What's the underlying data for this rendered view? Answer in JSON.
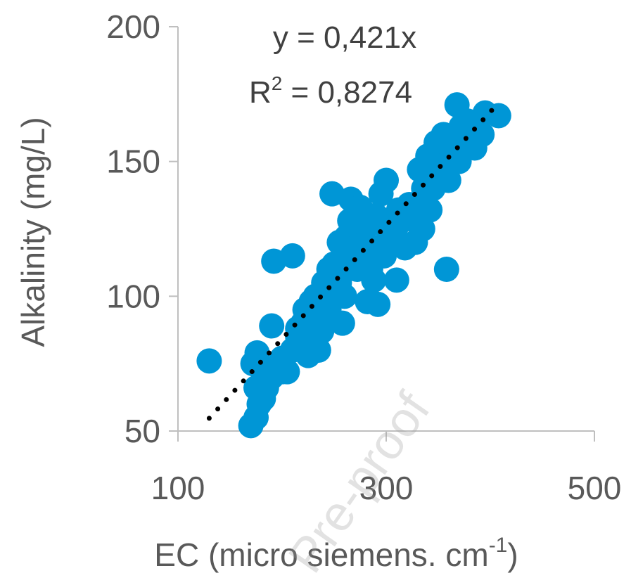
{
  "chart_data": {
    "type": "scatter",
    "xlabel": "EC (micro siemens. cm",
    "xlabel_sup": "-1",
    "xlabel_tail": ")",
    "ylabel": "Alkalinity (mg/L)",
    "xlim": [
      100,
      500
    ],
    "ylim": [
      50,
      200
    ],
    "x_ticks": [
      "100",
      "300",
      "500"
    ],
    "y_ticks": [
      "200",
      "150",
      "100",
      "50"
    ],
    "grid": false,
    "marker_color": "#0096D6",
    "trendline_color": "#000000",
    "equation": "y = 0,421x",
    "r2_prefix": "R",
    "r2_sup": "2",
    "r2_value": " = 0,8274",
    "watermark": "Pre-proof",
    "trendline": {
      "slope": 0.421,
      "x_start": 130,
      "x_end": 405
    },
    "points": [
      [
        130,
        76
      ],
      [
        170,
        52
      ],
      [
        175,
        55
      ],
      [
        178,
        60
      ],
      [
        182,
        62
      ],
      [
        175,
        66
      ],
      [
        185,
        66
      ],
      [
        172,
        75
      ],
      [
        176,
        79
      ],
      [
        190,
        70
      ],
      [
        195,
        74
      ],
      [
        200,
        77
      ],
      [
        205,
        72
      ],
      [
        210,
        80
      ],
      [
        190,
        89
      ],
      [
        192,
        113
      ],
      [
        210,
        115
      ],
      [
        215,
        85
      ],
      [
        220,
        90
      ],
      [
        222,
        95
      ],
      [
        228,
        98
      ],
      [
        225,
        82
      ],
      [
        232,
        100
      ],
      [
        235,
        95
      ],
      [
        240,
        105
      ],
      [
        238,
        87
      ],
      [
        245,
        110
      ],
      [
        248,
        138
      ],
      [
        250,
        112
      ],
      [
        255,
        120
      ],
      [
        258,
        90
      ],
      [
        260,
        100
      ],
      [
        262,
        122
      ],
      [
        265,
        128
      ],
      [
        266,
        136
      ],
      [
        268,
        115
      ],
      [
        270,
        130
      ],
      [
        272,
        110
      ],
      [
        275,
        133
      ],
      [
        278,
        125
      ],
      [
        280,
        120
      ],
      [
        282,
        98
      ],
      [
        285,
        127
      ],
      [
        288,
        106
      ],
      [
        290,
        130
      ],
      [
        292,
        97
      ],
      [
        295,
        138
      ],
      [
        298,
        115
      ],
      [
        300,
        143
      ],
      [
        305,
        125
      ],
      [
        310,
        106
      ],
      [
        312,
        132
      ],
      [
        318,
        118
      ],
      [
        322,
        134
      ],
      [
        328,
        128
      ],
      [
        332,
        147
      ],
      [
        336,
        140
      ],
      [
        340,
        152
      ],
      [
        345,
        145
      ],
      [
        348,
        157
      ],
      [
        352,
        148
      ],
      [
        355,
        160
      ],
      [
        358,
        110
      ],
      [
        360,
        150
      ],
      [
        363,
        158
      ],
      [
        368,
        171
      ],
      [
        372,
        163
      ],
      [
        378,
        165
      ],
      [
        385,
        155
      ],
      [
        395,
        168
      ],
      [
        408,
        167
      ],
      [
        392,
        160
      ],
      [
        360,
        143
      ],
      [
        345,
        140
      ],
      [
        335,
        125
      ],
      [
        318,
        118
      ],
      [
        300,
        120
      ],
      [
        285,
        110
      ],
      [
        270,
        118
      ],
      [
        255,
        105
      ],
      [
        240,
        98
      ],
      [
        230,
        92
      ],
      [
        215,
        82
      ],
      [
        200,
        72
      ],
      [
        185,
        68
      ],
      [
        215,
        88
      ],
      [
        225,
        78
      ],
      [
        235,
        80
      ],
      [
        245,
        95
      ],
      [
        250,
        100
      ],
      [
        260,
        115
      ],
      [
        278,
        112
      ],
      [
        295,
        118
      ],
      [
        310,
        126
      ],
      [
        325,
        130
      ],
      [
        338,
        138
      ],
      [
        350,
        145
      ],
      [
        370,
        150
      ],
      [
        380,
        158
      ],
      [
        362,
        155
      ],
      [
        342,
        132
      ],
      [
        328,
        120
      ]
    ]
  }
}
